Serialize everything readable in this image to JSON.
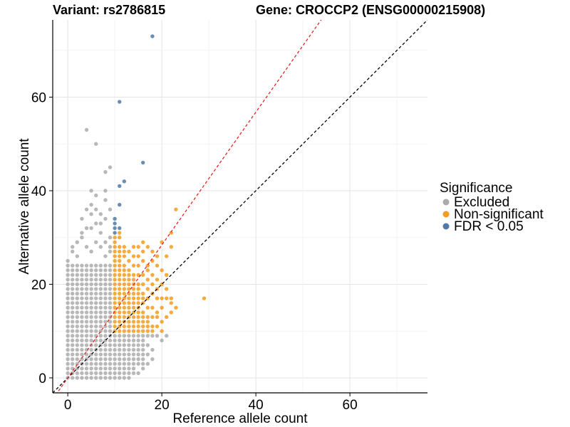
{
  "header": {
    "variant": "Variant: rs2786815",
    "gene": "Gene: CROCCP2 (ENSG00000215908)"
  },
  "legend": {
    "title": "Significance",
    "items": [
      {
        "label": "Excluded",
        "color": "#ababab"
      },
      {
        "label": "Non-significant",
        "color": "#f39c1f"
      },
      {
        "label": "FDR < 0.05",
        "color": "#4f79a6"
      }
    ]
  },
  "chart_data": {
    "type": "scatter",
    "xlabel": "Reference allele count",
    "ylabel": "Alternative allele count",
    "xlim": [
      -3.2,
      76.5
    ],
    "ylim": [
      -3.2,
      76.5
    ],
    "xticks": [
      0,
      20,
      40,
      60
    ],
    "yticks": [
      0,
      20,
      40,
      60
    ],
    "grid": true,
    "reference_lines": [
      {
        "name": "identity",
        "slope": 1,
        "color": "#000000",
        "style": "dashed"
      },
      {
        "name": "fitted",
        "slope": 1.42,
        "color": "#e32626",
        "style": "dashed"
      }
    ],
    "series": [
      {
        "name": "Excluded",
        "color": "#ababab",
        "grid_block": {
          "x_from": 0,
          "x_to": 9,
          "y_from": 0,
          "y_to": 24
        },
        "points": [
          [
            0,
            25
          ],
          [
            1,
            27
          ],
          [
            2,
            26
          ],
          [
            3,
            30
          ],
          [
            4,
            28
          ],
          [
            5,
            32
          ],
          [
            6,
            29
          ],
          [
            7,
            31
          ],
          [
            8,
            26
          ],
          [
            9,
            27
          ],
          [
            1,
            28
          ],
          [
            2,
            29
          ],
          [
            3,
            31
          ],
          [
            4,
            32
          ],
          [
            5,
            27
          ],
          [
            6,
            33
          ],
          [
            7,
            28
          ],
          [
            8,
            29
          ],
          [
            9,
            30
          ],
          [
            9,
            28
          ],
          [
            3,
            34
          ],
          [
            4,
            36
          ],
          [
            5,
            37
          ],
          [
            5,
            40
          ],
          [
            6,
            39
          ],
          [
            7,
            35
          ],
          [
            8,
            38
          ],
          [
            9,
            36
          ],
          [
            8,
            40
          ],
          [
            7,
            33
          ],
          [
            4,
            53
          ],
          [
            6,
            50
          ],
          [
            8,
            44
          ],
          [
            9,
            45
          ],
          [
            5,
            35
          ],
          [
            6,
            36
          ],
          [
            8,
            34
          ],
          [
            10,
            0
          ],
          [
            10,
            1
          ],
          [
            10,
            2
          ],
          [
            10,
            3
          ],
          [
            10,
            4
          ],
          [
            10,
            5
          ],
          [
            10,
            6
          ],
          [
            10,
            7
          ],
          [
            10,
            8
          ],
          [
            10,
            9
          ],
          [
            11,
            0
          ],
          [
            11,
            1
          ],
          [
            11,
            2
          ],
          [
            11,
            3
          ],
          [
            11,
            4
          ],
          [
            11,
            5
          ],
          [
            11,
            6
          ],
          [
            11,
            7
          ],
          [
            11,
            8
          ],
          [
            11,
            9
          ],
          [
            12,
            0
          ],
          [
            12,
            1
          ],
          [
            12,
            2
          ],
          [
            12,
            3
          ],
          [
            12,
            4
          ],
          [
            12,
            5
          ],
          [
            12,
            6
          ],
          [
            12,
            7
          ],
          [
            12,
            8
          ],
          [
            12,
            9
          ],
          [
            13,
            0
          ],
          [
            13,
            1
          ],
          [
            13,
            2
          ],
          [
            13,
            3
          ],
          [
            13,
            4
          ],
          [
            13,
            5
          ],
          [
            13,
            6
          ],
          [
            13,
            7
          ],
          [
            13,
            8
          ],
          [
            13,
            9
          ],
          [
            14,
            1
          ],
          [
            14,
            2
          ],
          [
            14,
            3
          ],
          [
            14,
            4
          ],
          [
            14,
            5
          ],
          [
            14,
            6
          ],
          [
            14,
            7
          ],
          [
            14,
            8
          ],
          [
            14,
            9
          ],
          [
            15,
            1
          ],
          [
            15,
            3
          ],
          [
            15,
            4
          ],
          [
            15,
            5
          ],
          [
            15,
            6
          ],
          [
            15,
            7
          ],
          [
            15,
            8
          ],
          [
            15,
            9
          ],
          [
            16,
            2
          ],
          [
            16,
            4
          ],
          [
            16,
            5
          ],
          [
            16,
            6
          ],
          [
            16,
            7
          ],
          [
            16,
            8
          ],
          [
            16,
            9
          ],
          [
            17,
            3
          ],
          [
            17,
            5
          ],
          [
            17,
            7
          ],
          [
            17,
            9
          ],
          [
            18,
            4
          ],
          [
            18,
            6
          ],
          [
            18,
            9
          ],
          [
            16,
            3
          ],
          [
            20,
            8
          ],
          [
            21,
            9
          ],
          [
            19,
            9
          ]
        ]
      },
      {
        "name": "Non-significant",
        "color": "#f39c1f",
        "grid_block": {
          "x_from": 10,
          "x_to": 14,
          "y_from": 10,
          "y_to": 19
        },
        "points": [
          [
            10,
            20
          ],
          [
            10,
            21
          ],
          [
            10,
            22
          ],
          [
            10,
            23
          ],
          [
            10,
            24
          ],
          [
            10,
            25
          ],
          [
            10,
            26
          ],
          [
            10,
            27
          ],
          [
            10,
            28
          ],
          [
            10,
            29
          ],
          [
            10,
            30
          ],
          [
            11,
            20
          ],
          [
            11,
            21
          ],
          [
            11,
            22
          ],
          [
            11,
            23
          ],
          [
            11,
            24
          ],
          [
            11,
            25
          ],
          [
            11,
            26
          ],
          [
            11,
            27
          ],
          [
            11,
            28
          ],
          [
            11,
            30
          ],
          [
            11,
            31
          ],
          [
            12,
            20
          ],
          [
            12,
            21
          ],
          [
            12,
            22
          ],
          [
            12,
            23
          ],
          [
            12,
            24
          ],
          [
            12,
            26
          ],
          [
            12,
            27
          ],
          [
            12,
            28
          ],
          [
            13,
            20
          ],
          [
            13,
            21
          ],
          [
            13,
            22
          ],
          [
            13,
            23
          ],
          [
            13,
            25
          ],
          [
            13,
            27
          ],
          [
            14,
            20
          ],
          [
            14,
            21
          ],
          [
            14,
            22
          ],
          [
            14,
            24
          ],
          [
            14,
            26
          ],
          [
            14,
            28
          ],
          [
            15,
            10
          ],
          [
            15,
            11
          ],
          [
            15,
            12
          ],
          [
            15,
            13
          ],
          [
            15,
            14
          ],
          [
            15,
            15
          ],
          [
            15,
            16
          ],
          [
            15,
            17
          ],
          [
            15,
            18
          ],
          [
            15,
            19
          ],
          [
            15,
            20
          ],
          [
            15,
            22
          ],
          [
            15,
            24
          ],
          [
            15,
            26
          ],
          [
            15,
            28
          ],
          [
            16,
            10
          ],
          [
            16,
            11
          ],
          [
            16,
            12
          ],
          [
            16,
            13
          ],
          [
            16,
            14
          ],
          [
            16,
            16
          ],
          [
            16,
            17
          ],
          [
            16,
            18
          ],
          [
            16,
            20
          ],
          [
            16,
            22
          ],
          [
            16,
            25
          ],
          [
            16,
            27
          ],
          [
            16,
            29
          ],
          [
            17,
            10
          ],
          [
            17,
            11
          ],
          [
            17,
            12
          ],
          [
            17,
            13
          ],
          [
            17,
            15
          ],
          [
            17,
            17
          ],
          [
            17,
            19
          ],
          [
            17,
            21
          ],
          [
            17,
            23
          ],
          [
            17,
            24
          ],
          [
            17,
            28
          ],
          [
            18,
            10
          ],
          [
            18,
            11
          ],
          [
            18,
            13
          ],
          [
            18,
            15
          ],
          [
            18,
            18
          ],
          [
            18,
            20
          ],
          [
            18,
            22
          ],
          [
            18,
            25
          ],
          [
            18,
            27
          ],
          [
            19,
            11
          ],
          [
            19,
            13
          ],
          [
            19,
            14
          ],
          [
            19,
            17
          ],
          [
            19,
            19
          ],
          [
            19,
            21
          ],
          [
            19,
            24
          ],
          [
            19,
            26
          ],
          [
            20,
            10
          ],
          [
            20,
            12
          ],
          [
            20,
            15
          ],
          [
            20,
            17
          ],
          [
            20,
            20
          ],
          [
            20,
            23
          ],
          [
            20,
            29
          ],
          [
            21,
            13
          ],
          [
            21,
            17
          ],
          [
            21,
            19
          ],
          [
            21,
            22
          ],
          [
            21,
            26
          ],
          [
            22,
            14
          ],
          [
            22,
            16
          ],
          [
            22,
            17
          ],
          [
            22,
            28
          ],
          [
            22,
            31
          ],
          [
            23,
            15
          ],
          [
            23,
            36
          ],
          [
            29,
            17
          ]
        ]
      },
      {
        "name": "FDR < 0.05",
        "color": "#4f79a6",
        "points": [
          [
            18,
            73
          ],
          [
            11,
            59
          ],
          [
            16,
            46
          ],
          [
            12,
            42
          ],
          [
            11,
            41
          ],
          [
            11,
            37
          ],
          [
            10,
            34
          ],
          [
            10,
            33
          ],
          [
            10,
            32
          ],
          [
            11,
            32
          ],
          [
            10,
            31
          ]
        ]
      }
    ]
  }
}
